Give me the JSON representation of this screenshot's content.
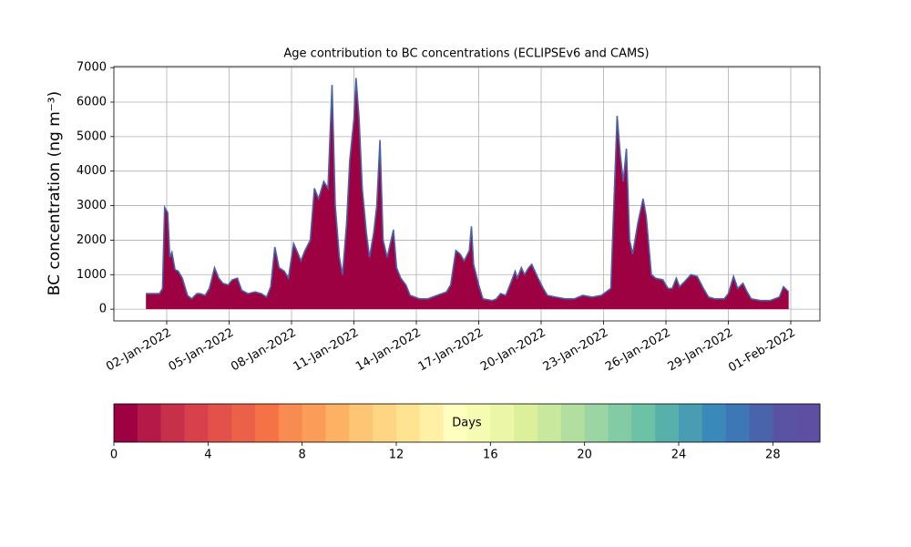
{
  "chart_data": {
    "type": "area",
    "title": "Age contribution to BC concentrations (ECLIPSEv6 and CAMS)",
    "ylabel": "BC concentration (ng m⁻³)",
    "series": [
      {
        "color": "#9e0142",
        "line_color": "#4a62a8",
        "x": [
          1.0,
          1.65,
          1.8,
          1.9,
          2.05,
          2.15,
          2.25,
          2.4,
          2.55,
          2.75,
          3.0,
          3.2,
          3.45,
          3.6,
          3.85,
          4.05,
          4.3,
          4.5,
          4.7,
          4.95,
          5.15,
          5.4,
          5.6,
          5.9,
          6.25,
          6.55,
          6.8,
          7.0,
          7.2,
          7.4,
          7.65,
          7.85,
          8.1,
          8.25,
          8.45,
          8.65,
          8.9,
          9.1,
          9.3,
          9.55,
          9.75,
          9.95,
          10.1,
          10.3,
          10.45,
          10.65,
          10.8,
          11.0,
          11.1,
          11.25,
          11.4,
          11.6,
          11.75,
          11.95,
          12.1,
          12.25,
          12.4,
          12.6,
          12.9,
          13.05,
          13.25,
          13.5,
          13.7,
          14.15,
          14.55,
          15.0,
          15.45,
          15.65,
          15.9,
          16.1,
          16.3,
          16.55,
          16.65,
          16.75,
          17.0,
          17.2,
          17.65,
          17.85,
          18.05,
          18.3,
          18.5,
          18.75,
          18.85,
          19.05,
          19.2,
          19.4,
          19.55,
          19.85,
          20.1,
          20.3,
          20.7,
          21.15,
          21.6,
          22.0,
          22.45,
          22.9,
          23.35,
          23.65,
          23.8,
          23.95,
          24.1,
          24.25,
          24.4,
          24.65,
          24.9,
          25.05,
          25.3,
          25.5,
          25.85,
          26.1,
          26.3,
          26.5,
          26.65,
          26.9,
          27.2,
          27.5,
          27.8,
          28.05,
          28.35,
          28.8,
          29.0,
          29.25,
          29.45,
          29.7,
          29.9,
          30.1,
          30.55,
          31.0,
          31.45,
          31.65,
          31.9
        ],
        "values": [
          450,
          450,
          600,
          2950,
          2800,
          1500,
          1650,
          1150,
          1100,
          900,
          400,
          300,
          450,
          450,
          400,
          600,
          1200,
          900,
          750,
          700,
          850,
          900,
          550,
          450,
          500,
          450,
          350,
          650,
          1800,
          1200,
          1100,
          900,
          1900,
          1700,
          1400,
          1700,
          2000,
          3500,
          3200,
          3700,
          3500,
          6500,
          3000,
          1500,
          1000,
          2500,
          4300,
          5500,
          6700,
          5500,
          3500,
          2200,
          1500,
          2200,
          3000,
          4900,
          2000,
          1500,
          2300,
          1200,
          900,
          700,
          400,
          300,
          300,
          400,
          500,
          700,
          1700,
          1600,
          1400,
          1700,
          2400,
          1300,
          700,
          300,
          250,
          300,
          450,
          400,
          700,
          1100,
          900,
          1200,
          1000,
          1200,
          1300,
          900,
          600,
          400,
          350,
          300,
          300,
          400,
          350,
          400,
          600,
          5600,
          4500,
          3700,
          4650,
          2000,
          1600,
          2500,
          3200,
          2700,
          1000,
          900,
          850,
          600,
          600,
          900,
          650,
          800,
          1000,
          950,
          600,
          350,
          300,
          300,
          450,
          950,
          600,
          750,
          500,
          300,
          250,
          250,
          350,
          650,
          500
        ]
      }
    ],
    "xlim": [
      -0.54,
      33.4
    ],
    "xticks": [
      {
        "value": 2,
        "label": "02-Jan-2022"
      },
      {
        "value": 5,
        "label": "05-Jan-2022"
      },
      {
        "value": 8,
        "label": "08-Jan-2022"
      },
      {
        "value": 11,
        "label": "11-Jan-2022"
      },
      {
        "value": 14,
        "label": "14-Jan-2022"
      },
      {
        "value": 17,
        "label": "17-Jan-2022"
      },
      {
        "value": 20,
        "label": "20-Jan-2022"
      },
      {
        "value": 23,
        "label": "23-Jan-2022"
      },
      {
        "value": 26,
        "label": "26-Jan-2022"
      },
      {
        "value": 29,
        "label": "29-Jan-2022"
      },
      {
        "value": 32,
        "label": "01-Feb-2022"
      }
    ],
    "ylim": [
      -340,
      7030
    ],
    "yticks": [
      0,
      1000,
      2000,
      3000,
      4000,
      5000,
      6000,
      7000
    ],
    "grid": true,
    "colorbar": {
      "label": "Days",
      "lim": [
        0,
        30
      ],
      "ticks": [
        0,
        4,
        8,
        12,
        16,
        20,
        24,
        28
      ],
      "colors": [
        "#9e0142",
        "#b41947",
        "#c7304b",
        "#d8404c",
        "#e2514a",
        "#ea6148",
        "#f47245",
        "#f88b51",
        "#fb9d59",
        "#fdb163",
        "#fdc675",
        "#fed683",
        "#fee391",
        "#fff0a6",
        "#fefebe",
        "#f6fbb2",
        "#ebf7a6",
        "#dcf09c",
        "#c8e89e",
        "#b2df9f",
        "#9bd5a4",
        "#83cba5",
        "#6cc2a5",
        "#58b0ab",
        "#4a9cb2",
        "#3a8ab9",
        "#3d77b6",
        "#4a64ac",
        "#5a52a3",
        "#5e4fa2"
      ]
    }
  }
}
